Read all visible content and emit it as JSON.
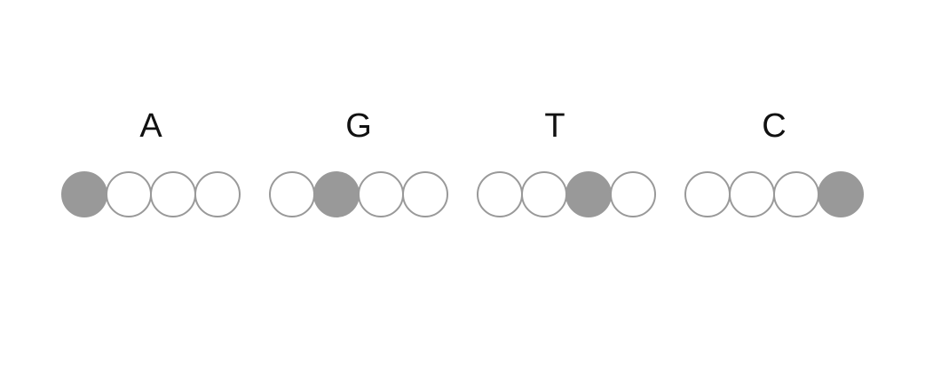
{
  "diagram": {
    "title": "",
    "colors": {
      "filled": "#999999",
      "outline": "#999999",
      "empty": "#ffffff",
      "text": "#111111"
    },
    "groups": [
      {
        "letter": "A",
        "filled_index": 0,
        "slot_count": 4
      },
      {
        "letter": "G",
        "filled_index": 1,
        "slot_count": 4
      },
      {
        "letter": "T",
        "filled_index": 2,
        "slot_count": 4
      },
      {
        "letter": "C",
        "filled_index": 3,
        "slot_count": 4
      }
    ]
  }
}
